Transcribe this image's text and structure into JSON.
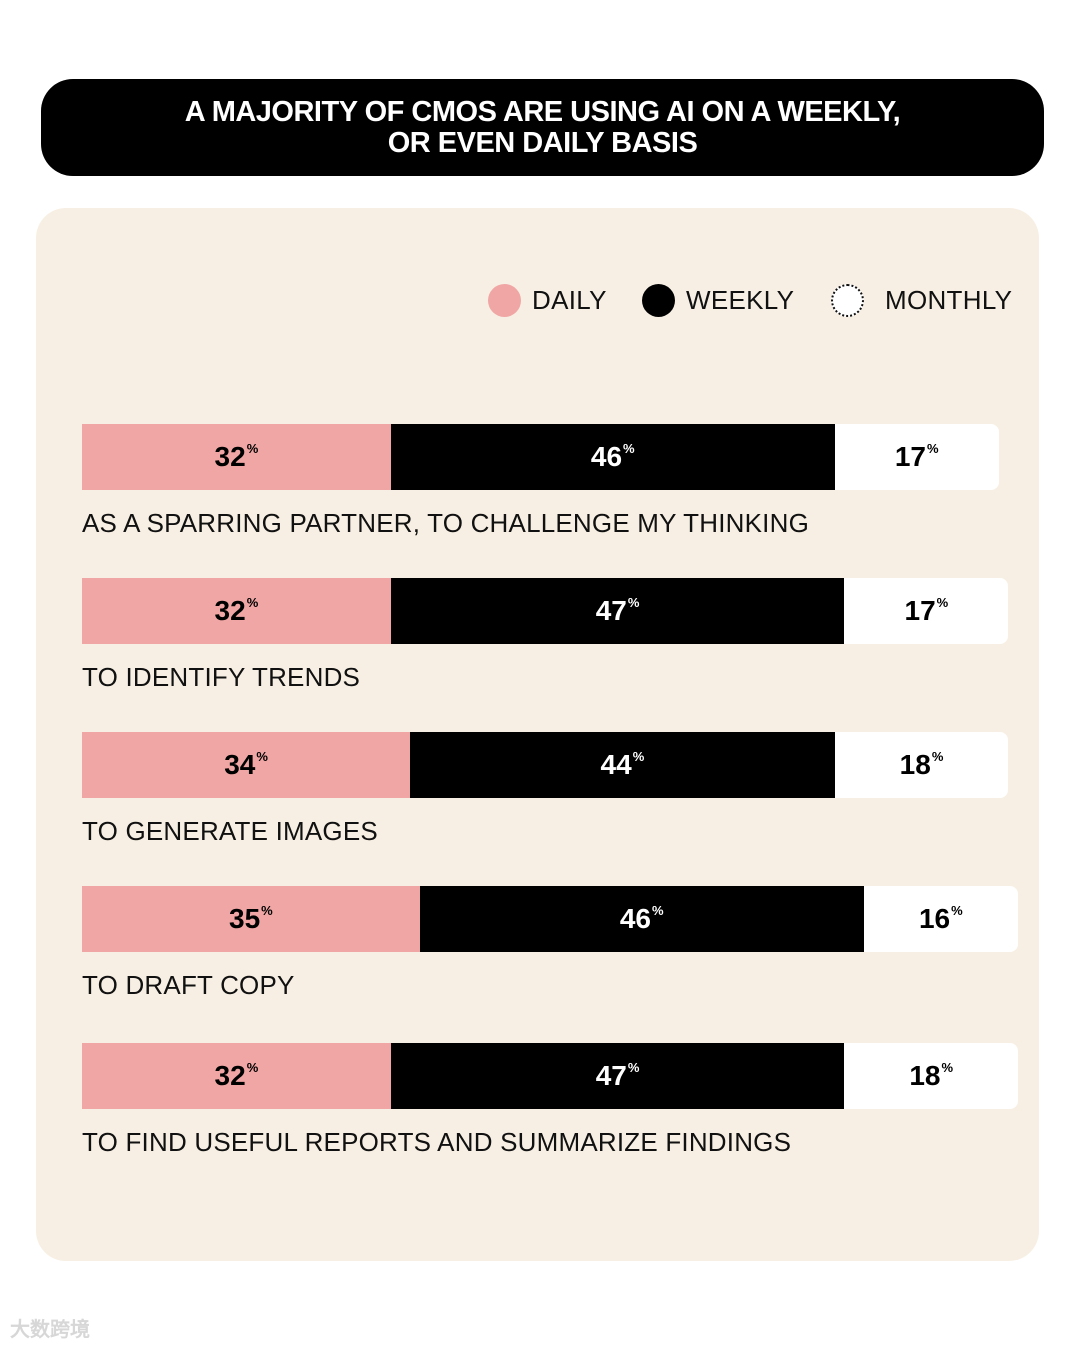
{
  "title_lines": [
    "A MAJORITY OF CMOS ARE USING AI ON A WEEKLY,",
    "OR EVEN DAILY BASIS"
  ],
  "legend": [
    {
      "label": "DAILY",
      "color": "#f0a6a4"
    },
    {
      "label": "WEEKLY",
      "color": "#000000"
    },
    {
      "label": "MONTHLY",
      "color": "#ffffff"
    }
  ],
  "watermark": "大数跨境",
  "chart_data": {
    "type": "bar",
    "stacked": true,
    "orientation": "horizontal",
    "title": "A MAJORITY OF CMOS ARE USING AI ON A WEEKLY, OR EVEN DAILY BASIS",
    "categories": [
      "AS A SPARRING PARTNER, TO CHALLENGE MY THINKING",
      "TO IDENTIFY TRENDS",
      "TO GENERATE IMAGES",
      "TO DRAFT COPY",
      "TO FIND USEFUL REPORTS AND SUMMARIZE FINDINGS"
    ],
    "series": [
      {
        "name": "DAILY",
        "values": [
          32,
          32,
          34,
          35,
          32
        ],
        "color": "#f0a6a4",
        "text_color": "#000000"
      },
      {
        "name": "WEEKLY",
        "values": [
          46,
          47,
          44,
          46,
          47
        ],
        "color": "#000000",
        "text_color": "#ffffff"
      },
      {
        "name": "MONTHLY",
        "values": [
          17,
          17,
          18,
          16,
          18
        ],
        "color": "#ffffff",
        "text_color": "#000000"
      }
    ],
    "unit": "%",
    "legend_position": "top-right"
  }
}
